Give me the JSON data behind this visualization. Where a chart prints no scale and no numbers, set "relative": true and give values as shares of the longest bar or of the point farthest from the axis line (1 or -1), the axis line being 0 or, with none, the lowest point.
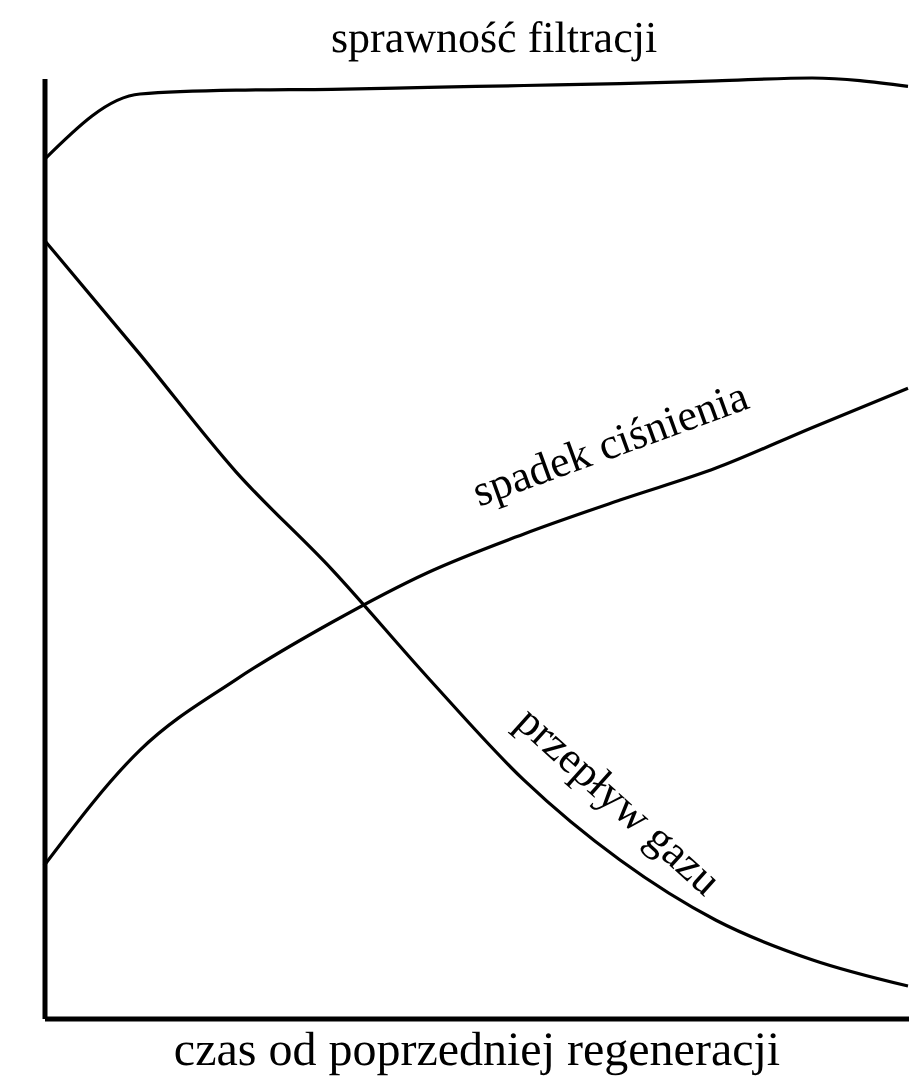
{
  "chart_data": {
    "type": "line",
    "relative": true,
    "xlabel": "czas od poprzedniej regeneracji",
    "categories": [
      null,
      null,
      null,
      null,
      null,
      null,
      null,
      null,
      null,
      null
    ],
    "series": [
      {
        "name": "sprawność filtracji",
        "color": "#000000",
        "values": [
          0.913,
          0.983,
          0.987,
          0.988,
          0.99,
          0.992,
          0.994,
          0.997,
          1.0,
          0.991
        ]
      },
      {
        "name": "spadek ciśnienia",
        "color": "#000000",
        "values": [
          0.162,
          0.285,
          0.36,
          0.421,
          0.474,
          0.515,
          0.551,
          0.585,
          0.628,
          0.67
        ]
      },
      {
        "name": "przepływ gazu",
        "color": "#000000",
        "values": [
          0.828,
          0.706,
          0.581,
          0.477,
          0.362,
          0.253,
          0.168,
          0.104,
          0.062,
          0.034
        ]
      }
    ],
    "grid": false,
    "legend": false,
    "marker": "none",
    "line_style": "solid",
    "tick_labels": false
  }
}
